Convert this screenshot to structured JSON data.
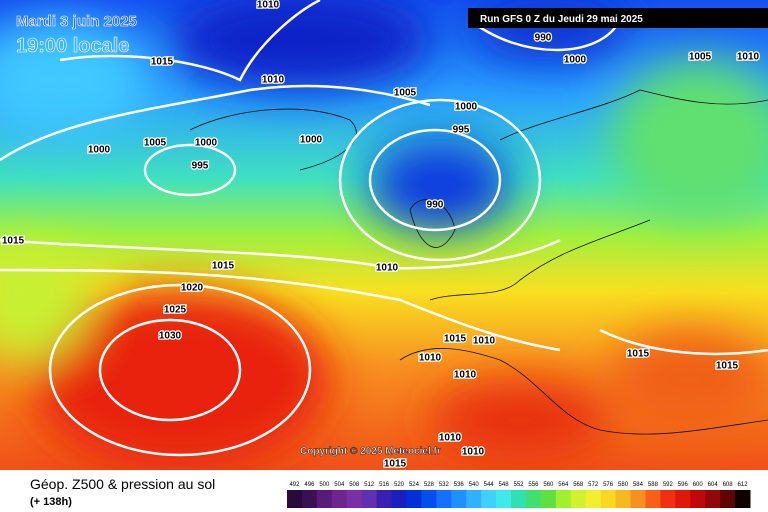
{
  "header": {
    "date": "Mardi 3 juin 2025",
    "time": "19:00 locale",
    "run": "Run GFS 0 Z du Jeudi 29 mai 2025"
  },
  "footer": {
    "title": "Géop. Z500 & pression au sol",
    "lead": "(+ 138h)",
    "copyright": "Copyright © 2025 Meteociel.fr"
  },
  "isobar_labels": [
    "1010",
    "990",
    "1000",
    "1005",
    "1010",
    "1015",
    "1010",
    "1005",
    "1000",
    "995",
    "1000",
    "1005",
    "1000",
    "1000",
    "995",
    "990",
    "1015",
    "1015",
    "1010",
    "1020",
    "1025",
    "1030",
    "1015",
    "1010",
    "1010",
    "1015",
    "1015",
    "1010",
    "1010",
    "1010",
    "1015"
  ],
  "colorbar": {
    "levels": [
      492,
      496,
      500,
      504,
      508,
      512,
      516,
      520,
      524,
      528,
      532,
      536,
      540,
      544,
      548,
      552,
      556,
      560,
      564,
      568,
      572,
      576,
      580,
      584,
      588,
      592,
      596,
      600,
      604,
      608,
      612
    ],
    "colors": [
      "#2a0a3a",
      "#3c0f55",
      "#5a1a7a",
      "#6e2590",
      "#7a2fa5",
      "#6030b0",
      "#3a1fb0",
      "#1a20c0",
      "#0030d8",
      "#0050f0",
      "#1470ff",
      "#1e90ff",
      "#30b0ff",
      "#40d0ff",
      "#40e8e8",
      "#30e0b0",
      "#40e070",
      "#60e040",
      "#a0f030",
      "#d0f030",
      "#f0f030",
      "#f8d820",
      "#f8b820",
      "#f89020",
      "#f86018",
      "#f03010",
      "#e01808",
      "#c00808",
      "#900808",
      "#600505",
      "#100000"
    ]
  }
}
